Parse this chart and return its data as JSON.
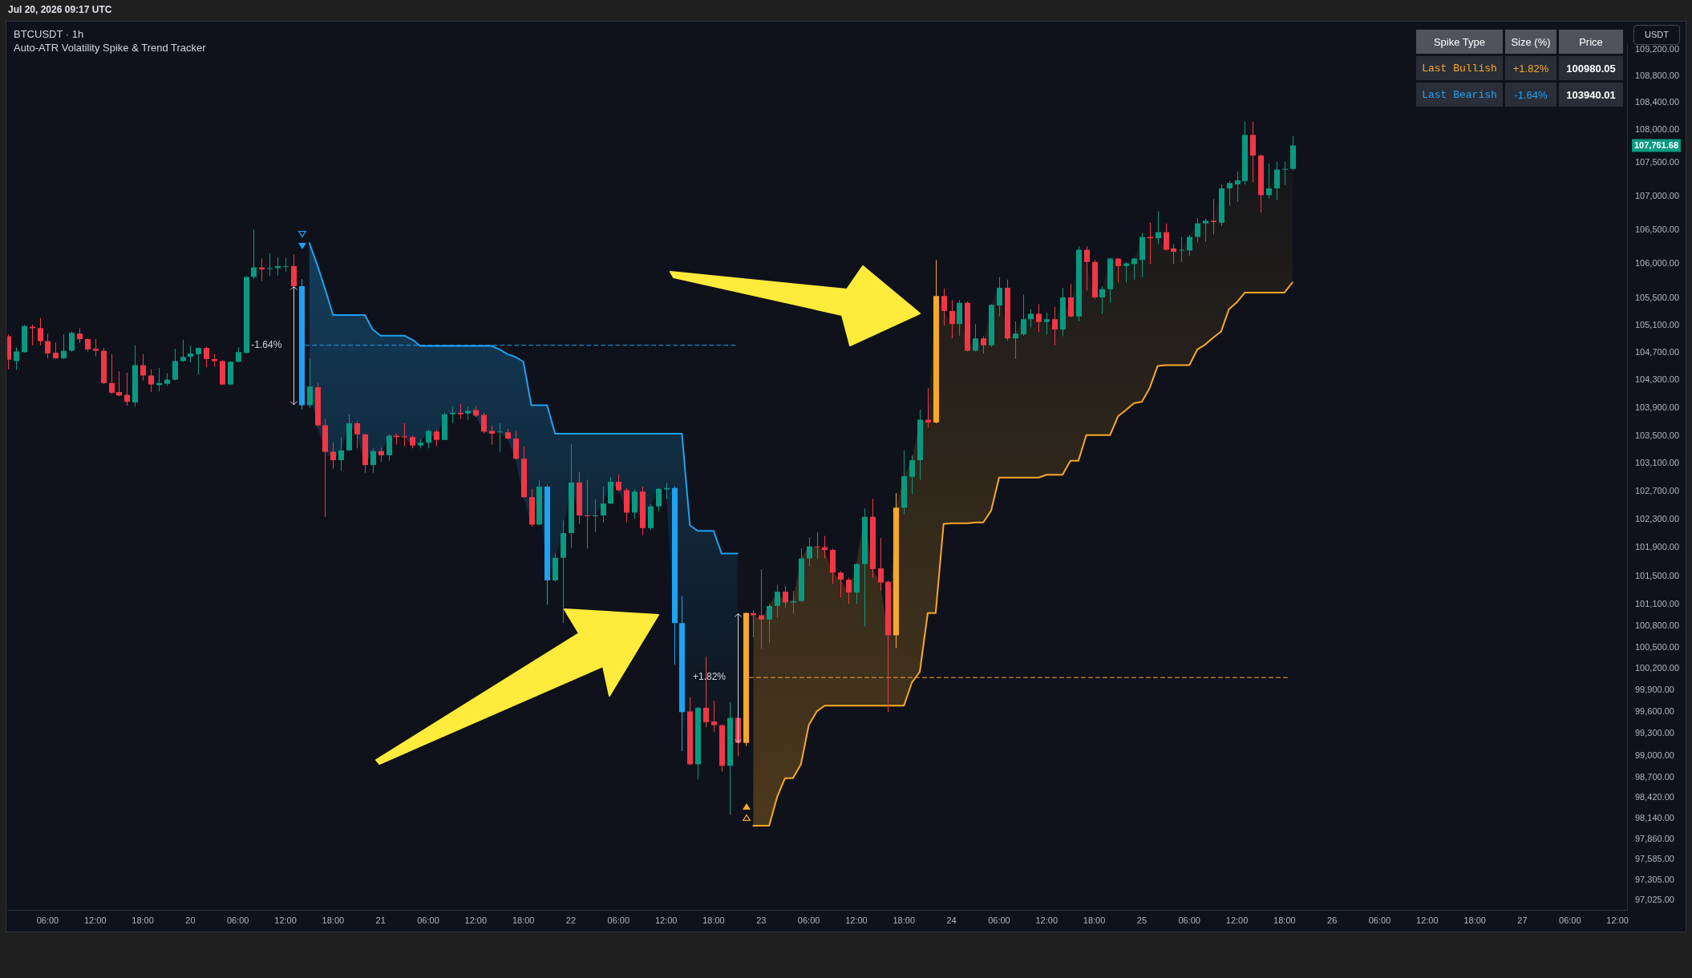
{
  "chart_data": [
    {
      "type": "candlestick",
      "title": "BTCUSDT · 1h",
      "subtitle": "Auto-ATR Volatility Spike & Trend Tracker",
      "ylabel": "USDT",
      "log": true,
      "xlim": [
        "--06-19T00:54",
        "--06-27T13:12"
      ],
      "xticks": [
        {
          "value": "--06-19T06:00",
          "label": "06:00"
        },
        {
          "value": "--06-19T12:00",
          "label": "12:00"
        },
        {
          "value": "--06-19T18:00",
          "label": "18:00"
        },
        {
          "value": "--06-20T00:00",
          "label": "20"
        },
        {
          "value": "--06-20T06:00",
          "label": "06:00"
        },
        {
          "value": "--06-20T12:00",
          "label": "12:00"
        },
        {
          "value": "--06-20T18:00",
          "label": "18:00"
        },
        {
          "value": "--06-21T00:00",
          "label": "21"
        },
        {
          "value": "--06-21T06:00",
          "label": "06:00"
        },
        {
          "value": "--06-21T12:00",
          "label": "12:00"
        },
        {
          "value": "--06-21T18:00",
          "label": "18:00"
        },
        {
          "value": "--06-22T00:00",
          "label": "22"
        },
        {
          "value": "--06-22T06:00",
          "label": "06:00"
        },
        {
          "value": "--06-22T12:00",
          "label": "12:00"
        },
        {
          "value": "--06-22T18:00",
          "label": "18:00"
        },
        {
          "value": "--06-23T00:00",
          "label": "23"
        },
        {
          "value": "--06-23T06:00",
          "label": "06:00"
        },
        {
          "value": "--06-23T12:00",
          "label": "12:00"
        },
        {
          "value": "--06-23T18:00",
          "label": "18:00"
        },
        {
          "value": "--06-24T00:00",
          "label": "24"
        },
        {
          "value": "--06-24T06:00",
          "label": "06:00"
        },
        {
          "value": "--06-24T12:00",
          "label": "12:00"
        },
        {
          "value": "--06-24T18:00",
          "label": "18:00"
        },
        {
          "value": "--06-25T00:00",
          "label": "25"
        },
        {
          "value": "--06-25T06:00",
          "label": "06:00"
        },
        {
          "value": "--06-25T12:00",
          "label": "12:00"
        },
        {
          "value": "--06-25T18:00",
          "label": "18:00"
        },
        {
          "value": "--06-26T00:00",
          "label": "26"
        },
        {
          "value": "--06-26T06:00",
          "label": "06:00"
        },
        {
          "value": "--06-26T12:00",
          "label": "12:00"
        },
        {
          "value": "--06-26T18:00",
          "label": "18:00"
        },
        {
          "value": "--06-27T00:00",
          "label": "27"
        },
        {
          "value": "--06-27T06:00",
          "label": "06:00"
        },
        {
          "value": "--06-27T12:00",
          "label": "12:00"
        }
      ],
      "ylim": [
        96900,
        109290
      ],
      "yticks": [
        {
          "value": 109200,
          "label": "109,200.00"
        },
        {
          "value": 108800,
          "label": "108,800.00"
        },
        {
          "value": 108400,
          "label": "108,400.00"
        },
        {
          "value": 108000,
          "label": "108,000.00"
        },
        {
          "value": 107500,
          "label": "107,500.00"
        },
        {
          "value": 107000,
          "label": "107,000.00"
        },
        {
          "value": 106500,
          "label": "106,500.00"
        },
        {
          "value": 106000,
          "label": "106,000.00"
        },
        {
          "value": 105500,
          "label": "105,500.00"
        },
        {
          "value": 105100,
          "label": "105,100.00"
        },
        {
          "value": 104700,
          "label": "104,700.00"
        },
        {
          "value": 104300,
          "label": "104,300.00"
        },
        {
          "value": 103900,
          "label": "103,900.00"
        },
        {
          "value": 103500,
          "label": "103,500.00"
        },
        {
          "value": 103100,
          "label": "103,100.00"
        },
        {
          "value": 102700,
          "label": "102,700.00"
        },
        {
          "value": 102300,
          "label": "102,300.00"
        },
        {
          "value": 101900,
          "label": "101,900.00"
        },
        {
          "value": 101500,
          "label": "101,500.00"
        },
        {
          "value": 101100,
          "label": "101,100.00"
        },
        {
          "value": 100800,
          "label": "100,800.00"
        },
        {
          "value": 100500,
          "label": "100,500.00"
        },
        {
          "value": 100200,
          "label": "100,200.00"
        },
        {
          "value": 99900,
          "label": "99,900.00"
        },
        {
          "value": 99600,
          "label": "99,600.00"
        },
        {
          "value": 99300,
          "label": "99,300.00"
        },
        {
          "value": 99000,
          "label": "99,000.00"
        },
        {
          "value": 98700,
          "label": "98,700.00"
        },
        {
          "value": 98420,
          "label": "98,420.00"
        },
        {
          "value": 98140,
          "label": "98,140.00"
        },
        {
          "value": 97860,
          "label": "97,860.00"
        },
        {
          "value": 97585,
          "label": "97,585.00"
        },
        {
          "value": 97305,
          "label": "97,305.00"
        },
        {
          "value": 97025,
          "label": "97,025.00"
        }
      ],
      "x": [
        "--06-19T01:00",
        "--06-19T02:00",
        "--06-19T03:00",
        "--06-19T04:00",
        "--06-19T05:00",
        "--06-19T06:00",
        "--06-19T07:00",
        "--06-19T08:00",
        "--06-19T09:00",
        "--06-19T10:00",
        "--06-19T11:00",
        "--06-19T12:00",
        "--06-19T13:00",
        "--06-19T14:00",
        "--06-19T15:00",
        "--06-19T16:00",
        "--06-19T17:00",
        "--06-19T18:00",
        "--06-19T19:00",
        "--06-19T20:00",
        "--06-19T21:00",
        "--06-19T22:00",
        "--06-19T23:00",
        "--06-20T00:00",
        "--06-20T01:00",
        "--06-20T02:00",
        "--06-20T03:00",
        "--06-20T04:00",
        "--06-20T05:00",
        "--06-20T06:00",
        "--06-20T07:00",
        "--06-20T08:00",
        "--06-20T09:00",
        "--06-20T10:00",
        "--06-20T11:00",
        "--06-20T12:00",
        "--06-20T13:00",
        "--06-20T14:00",
        "--06-20T15:00",
        "--06-20T16:00",
        "--06-20T17:00",
        "--06-20T18:00",
        "--06-20T19:00",
        "--06-20T20:00",
        "--06-20T21:00",
        "--06-20T22:00",
        "--06-20T23:00",
        "--06-21T00:00",
        "--06-21T01:00",
        "--06-21T02:00",
        "--06-21T03:00",
        "--06-21T04:00",
        "--06-21T05:00",
        "--06-21T06:00",
        "--06-21T07:00",
        "--06-21T08:00",
        "--06-21T09:00",
        "--06-21T10:00",
        "--06-21T11:00",
        "--06-21T12:00",
        "--06-21T13:00",
        "--06-21T14:00",
        "--06-21T15:00",
        "--06-21T16:00",
        "--06-21T17:00",
        "--06-21T18:00",
        "--06-21T19:00",
        "--06-21T20:00",
        "--06-21T21:00",
        "--06-21T22:00",
        "--06-21T23:00",
        "--06-22T00:00",
        "--06-22T01:00",
        "--06-22T02:00",
        "--06-22T03:00",
        "--06-22T04:00",
        "--06-22T05:00",
        "--06-22T06:00",
        "--06-22T07:00",
        "--06-22T08:00",
        "--06-22T09:00",
        "--06-22T10:00",
        "--06-22T11:00",
        "--06-22T12:00",
        "--06-22T13:00",
        "--06-22T14:00",
        "--06-22T15:00",
        "--06-22T16:00",
        "--06-22T17:00",
        "--06-22T18:00",
        "--06-22T19:00",
        "--06-22T20:00",
        "--06-22T21:00",
        "--06-22T22:00",
        "--06-22T23:00",
        "--06-23T00:00",
        "--06-23T01:00",
        "--06-23T02:00",
        "--06-23T03:00",
        "--06-23T04:00",
        "--06-23T05:00",
        "--06-23T06:00",
        "--06-23T07:00",
        "--06-23T08:00",
        "--06-23T09:00",
        "--06-23T10:00",
        "--06-23T11:00",
        "--06-23T12:00",
        "--06-23T13:00",
        "--06-23T14:00",
        "--06-23T15:00",
        "--06-23T16:00",
        "--06-23T17:00",
        "--06-23T18:00",
        "--06-23T19:00",
        "--06-23T20:00",
        "--06-23T21:00",
        "--06-23T22:00",
        "--06-23T23:00",
        "--06-24T00:00",
        "--06-24T01:00",
        "--06-24T02:00",
        "--06-24T03:00",
        "--06-24T04:00",
        "--06-24T05:00",
        "--06-24T06:00",
        "--06-24T07:00",
        "--06-24T08:00",
        "--06-24T09:00",
        "--06-24T10:00",
        "--06-24T11:00",
        "--06-24T12:00",
        "--06-24T13:00",
        "--06-24T14:00",
        "--06-24T15:00",
        "--06-24T16:00",
        "--06-24T17:00",
        "--06-24T18:00",
        "--06-24T19:00",
        "--06-24T20:00",
        "--06-24T21:00",
        "--06-24T22:00",
        "--06-24T23:00",
        "--06-25T00:00",
        "--06-25T01:00",
        "--06-25T02:00",
        "--06-25T03:00",
        "--06-25T04:00",
        "--06-25T05:00",
        "--06-25T06:00",
        "--06-25T07:00",
        "--06-25T08:00",
        "--06-25T09:00",
        "--06-25T10:00",
        "--06-25T11:00",
        "--06-25T12:00",
        "--06-25T13:00",
        "--06-25T14:00",
        "--06-25T15:00",
        "--06-25T16:00",
        "--06-25T17:00",
        "--06-25T18:00",
        "--06-25T19:00"
      ],
      "ohlc": [
        [
          104940,
          104970,
          104460,
          104600
        ],
        [
          104580,
          104780,
          104450,
          104720
        ],
        [
          104710,
          105110,
          104700,
          105090
        ],
        [
          105080,
          105110,
          104810,
          105060
        ],
        [
          105060,
          105210,
          104810,
          104870
        ],
        [
          104870,
          104980,
          104620,
          104690
        ],
        [
          104700,
          104850,
          104610,
          104620
        ],
        [
          104620,
          104970,
          104610,
          104730
        ],
        [
          104730,
          105010,
          104720,
          104990
        ],
        [
          104980,
          105060,
          104840,
          104900
        ],
        [
          104900,
          104910,
          104720,
          104750
        ],
        [
          104760,
          104900,
          104650,
          104730
        ],
        [
          104730,
          104770,
          104250,
          104260
        ],
        [
          104260,
          104680,
          104100,
          104120
        ],
        [
          104130,
          104430,
          104070,
          104080
        ],
        [
          104090,
          104410,
          103930,
          103990
        ],
        [
          103980,
          104810,
          103920,
          104520
        ],
        [
          104520,
          104680,
          104300,
          104370
        ],
        [
          104370,
          104460,
          104130,
          104240
        ],
        [
          104230,
          104480,
          104140,
          104260
        ],
        [
          104250,
          104400,
          104220,
          104310
        ],
        [
          104310,
          104760,
          104300,
          104580
        ],
        [
          104580,
          104890,
          104570,
          104640
        ],
        [
          104640,
          104810,
          104560,
          104690
        ],
        [
          104680,
          104780,
          104380,
          104770
        ],
        [
          104770,
          104790,
          104490,
          104610
        ],
        [
          104610,
          104680,
          104500,
          104580
        ],
        [
          104580,
          104600,
          104230,
          104240
        ],
        [
          104240,
          104580,
          104230,
          104570
        ],
        [
          104570,
          104780,
          104560,
          104710
        ],
        [
          104700,
          105820,
          104690,
          105810
        ],
        [
          105810,
          106510,
          105780,
          105950
        ],
        [
          105950,
          106080,
          105750,
          105920
        ],
        [
          105930,
          106160,
          105820,
          105940
        ],
        [
          105940,
          106100,
          105830,
          105970
        ],
        [
          105960,
          106090,
          105890,
          105970
        ],
        [
          105970,
          106140,
          105650,
          105673
        ],
        [
          105673,
          105780,
          103880,
          103940.01
        ],
        [
          103940,
          104610,
          103900,
          104210
        ],
        [
          104200,
          104260,
          103630,
          103650
        ],
        [
          103650,
          103740,
          102340,
          103270
        ],
        [
          103270,
          103400,
          103030,
          103150
        ],
        [
          103150,
          103480,
          103000,
          103290
        ],
        [
          103290,
          103810,
          103280,
          103680
        ],
        [
          103680,
          103710,
          103320,
          103520
        ],
        [
          103520,
          103530,
          102970,
          103080
        ],
        [
          103080,
          103320,
          102970,
          103280
        ],
        [
          103280,
          103330,
          103120,
          103220
        ],
        [
          103220,
          103520,
          103140,
          103500
        ],
        [
          103500,
          103530,
          103370,
          103480
        ],
        [
          103490,
          103680,
          103350,
          103480
        ],
        [
          103480,
          103500,
          103320,
          103360
        ],
        [
          103360,
          103450,
          103320,
          103400
        ],
        [
          103400,
          103590,
          103320,
          103570
        ],
        [
          103560,
          103590,
          103350,
          103440
        ],
        [
          103440,
          103830,
          103440,
          103810
        ],
        [
          103810,
          103920,
          103680,
          103830
        ],
        [
          103830,
          103960,
          103740,
          103810
        ],
        [
          103820,
          103920,
          103730,
          103860
        ],
        [
          103870,
          103930,
          103770,
          103790
        ],
        [
          103800,
          103830,
          103530,
          103560
        ],
        [
          103570,
          103640,
          103370,
          103530
        ],
        [
          103550,
          103680,
          103270,
          103560
        ],
        [
          103550,
          103600,
          103450,
          103460
        ],
        [
          103460,
          103570,
          103160,
          103170
        ],
        [
          103170,
          103350,
          102610,
          102620
        ],
        [
          102620,
          102740,
          102200,
          102230
        ],
        [
          102230,
          102870,
          102220,
          102770
        ],
        [
          102770,
          102790,
          101100,
          101440
        ],
        [
          101440,
          101820,
          101420,
          101760
        ],
        [
          101760,
          102290,
          100840,
          102110
        ],
        [
          102110,
          103380,
          101900,
          102830
        ],
        [
          102830,
          102980,
          102240,
          102360
        ],
        [
          102360,
          102870,
          101890,
          102350
        ],
        [
          102350,
          102590,
          102120,
          102360
        ],
        [
          102360,
          102770,
          102260,
          102530
        ],
        [
          102530,
          102910,
          102520,
          102840
        ],
        [
          102840,
          102940,
          102700,
          102720
        ],
        [
          102720,
          102750,
          102260,
          102400
        ],
        [
          102400,
          102730,
          102310,
          102700
        ],
        [
          102700,
          102770,
          102080,
          102180
        ],
        [
          102180,
          102520,
          102150,
          102490
        ],
        [
          102490,
          102750,
          102420,
          102740
        ],
        [
          102730,
          102820,
          102590,
          102750
        ],
        [
          102750,
          102780,
          100260,
          100840
        ],
        [
          100840,
          101220,
          99060,
          99600
        ],
        [
          99610,
          99810,
          98870,
          98880
        ],
        [
          98880,
          99670,
          98670,
          99660
        ],
        [
          99660,
          100370,
          99390,
          99460
        ],
        [
          99470,
          99760,
          99330,
          99420
        ],
        [
          99420,
          99430,
          98780,
          98860
        ],
        [
          98860,
          99740,
          98190,
          99520
        ],
        [
          99520,
          99540,
          98990,
          99175
        ],
        [
          99175,
          100990,
          99130,
          100980.05
        ],
        [
          100980,
          101020,
          100640,
          100950
        ],
        [
          100950,
          101600,
          100480,
          100890
        ],
        [
          100890,
          101110,
          100560,
          101080
        ],
        [
          101080,
          101380,
          100920,
          101280
        ],
        [
          101280,
          101360,
          101060,
          101130
        ],
        [
          101130,
          101290,
          100970,
          101150
        ],
        [
          101150,
          101890,
          101130,
          101750
        ],
        [
          101750,
          102050,
          101640,
          101920
        ],
        [
          101920,
          102120,
          101740,
          101910
        ],
        [
          101910,
          102070,
          101750,
          101870
        ],
        [
          101870,
          101890,
          101390,
          101550
        ],
        [
          101550,
          101570,
          101200,
          101450
        ],
        [
          101450,
          101480,
          101110,
          101270
        ],
        [
          101270,
          101680,
          101110,
          101670
        ],
        [
          101670,
          102460,
          100790,
          102340
        ],
        [
          102340,
          102600,
          101480,
          101600
        ],
        [
          101610,
          102040,
          101290,
          101410
        ],
        [
          101420,
          101440,
          99600,
          100670
        ],
        [
          100670,
          102680,
          100490,
          102470
        ],
        [
          102470,
          103290,
          102380,
          102920
        ],
        [
          102910,
          103220,
          102660,
          103150
        ],
        [
          103150,
          103880,
          102870,
          103730
        ],
        [
          103730,
          104190,
          103620,
          103690
        ],
        [
          103690,
          106060,
          103680,
          105530
        ],
        [
          105530,
          105640,
          105100,
          105310
        ],
        [
          105310,
          105470,
          104910,
          105120
        ],
        [
          105120,
          105470,
          104950,
          105430
        ],
        [
          105430,
          105450,
          104720,
          104730
        ],
        [
          104730,
          105120,
          104720,
          104910
        ],
        [
          104910,
          104940,
          104690,
          104810
        ],
        [
          104810,
          105410,
          104790,
          105400
        ],
        [
          105390,
          105810,
          105230,
          105650
        ],
        [
          105650,
          105770,
          104880,
          104910
        ],
        [
          104910,
          105160,
          104610,
          104980
        ],
        [
          104970,
          105550,
          104950,
          105190
        ],
        [
          105190,
          105340,
          105070,
          105270
        ],
        [
          105270,
          105410,
          105000,
          105150
        ],
        [
          105150,
          105290,
          104970,
          105190
        ],
        [
          105190,
          105370,
          104810,
          105040
        ],
        [
          105040,
          105650,
          104940,
          105510
        ],
        [
          105510,
          105710,
          105220,
          105230
        ],
        [
          105230,
          106260,
          105160,
          106210
        ],
        [
          106210,
          106260,
          105610,
          106030
        ],
        [
          106030,
          106060,
          105490,
          105510
        ],
        [
          105510,
          105670,
          105270,
          105630
        ],
        [
          105630,
          106090,
          105430,
          106080
        ],
        [
          106080,
          106090,
          105730,
          105970
        ],
        [
          105970,
          106030,
          105730,
          106010
        ],
        [
          106000,
          106090,
          105770,
          106080
        ],
        [
          106060,
          106460,
          105810,
          106400
        ],
        [
          106400,
          106610,
          106000,
          106380
        ],
        [
          106380,
          106780,
          106290,
          106470
        ],
        [
          106470,
          106600,
          106200,
          106210
        ],
        [
          106230,
          106290,
          106000,
          106180
        ],
        [
          106200,
          106400,
          106030,
          106210
        ],
        [
          106200,
          106430,
          106120,
          106400
        ],
        [
          106400,
          106680,
          106320,
          106600
        ],
        [
          106600,
          106670,
          106330,
          106640
        ],
        [
          106640,
          106960,
          106440,
          106620
        ],
        [
          106610,
          107180,
          106560,
          107120
        ],
        [
          107120,
          107230,
          106860,
          107200
        ],
        [
          107180,
          107370,
          106920,
          107240
        ],
        [
          107230,
          108120,
          107180,
          107920
        ],
        [
          107920,
          108120,
          107210,
          107610
        ],
        [
          107610,
          107630,
          106760,
          107020
        ],
        [
          107020,
          107490,
          106970,
          107120
        ],
        [
          107120,
          107520,
          106940,
          107400
        ],
        [
          107400,
          107520,
          107170,
          107410
        ],
        [
          107410,
          107900,
          107390,
          107761.68
        ]
      ],
      "colors": [
        "#f23645",
        "#089981",
        "#089981",
        "#f23645",
        "#f23645",
        "#f23645",
        "#f23645",
        "#089981",
        "#089981",
        "#f23645",
        "#f23645",
        "#f23645",
        "#f23645",
        "#f23645",
        "#f23645",
        "#f23645",
        "#089981",
        "#f23645",
        "#f23645",
        "#089981",
        "#089981",
        "#089981",
        "#089981",
        "#089981",
        "#089981",
        "#f23645",
        "#f23645",
        "#f23645",
        "#089981",
        "#089981",
        "#089981",
        "#089981",
        "#f23645",
        "#089981",
        "#089981",
        "#089981",
        "#f23645",
        "#1ea2f3",
        "#089981",
        "#f23645",
        "#f23645",
        "#f23645",
        "#089981",
        "#089981",
        "#f23645",
        "#f23645",
        "#089981",
        "#f23645",
        "#089981",
        "#f23645",
        "#f23645",
        "#f23645",
        "#089981",
        "#089981",
        "#f23645",
        "#089981",
        "#089981",
        "#f23645",
        "#089981",
        "#f23645",
        "#f23645",
        "#f23645",
        "#089981",
        "#f23645",
        "#f23645",
        "#f23645",
        "#f23645",
        "#089981",
        "#1ea2f3",
        "#089981",
        "#089981",
        "#089981",
        "#f23645",
        "#f23645",
        "#089981",
        "#089981",
        "#089981",
        "#f23645",
        "#f23645",
        "#089981",
        "#f23645",
        "#089981",
        "#089981",
        "#089981",
        "#1ea2f3",
        "#1ea2f3",
        "#f23645",
        "#089981",
        "#f23645",
        "#f23645",
        "#f23645",
        "#089981",
        "#f23645",
        "#f9a825",
        "#f23645",
        "#f23645",
        "#089981",
        "#089981",
        "#f23645",
        "#089981",
        "#089981",
        "#089981",
        "#f23645",
        "#f23645",
        "#f23645",
        "#f23645",
        "#f23645",
        "#089981",
        "#089981",
        "#f23645",
        "#f23645",
        "#f23645",
        "#f9a825",
        "#089981",
        "#089981",
        "#089981",
        "#f23645",
        "#f9a825",
        "#f23645",
        "#f23645",
        "#089981",
        "#f23645",
        "#089981",
        "#f23645",
        "#089981",
        "#089981",
        "#f23645",
        "#089981",
        "#089981",
        "#089981",
        "#f23645",
        "#089981",
        "#f23645",
        "#089981",
        "#f23645",
        "#089981",
        "#f23645",
        "#f23645",
        "#089981",
        "#089981",
        "#f23645",
        "#089981",
        "#089981",
        "#089981",
        "#f23645",
        "#089981",
        "#f23645",
        "#f23645",
        "#089981",
        "#089981",
        "#089981",
        "#089981",
        "#f23645",
        "#089981",
        "#089981",
        "#089981",
        "#089981",
        "#f23645",
        "#f23645",
        "#089981",
        "#089981",
        "#089981",
        "#089981"
      ],
      "series": [
        {
          "type": "line",
          "color": "#1ea2f3",
          "x": [
            "--06-20T15:00",
            "--06-20T16:00",
            "--06-20T17:00",
            "--06-20T18:00",
            "--06-20T19:00",
            "--06-20T20:00",
            "--06-20T21:00",
            "--06-20T22:00",
            "--06-20T23:00",
            "--06-21T00:00",
            "--06-21T01:00",
            "--06-21T02:00",
            "--06-21T03:00",
            "--06-21T04:00",
            "--06-21T05:00",
            "--06-21T06:00",
            "--06-21T07:00",
            "--06-21T08:00",
            "--06-21T09:00",
            "--06-21T10:00",
            "--06-21T11:00",
            "--06-21T12:00",
            "--06-21T13:00",
            "--06-21T14:00",
            "--06-21T15:00",
            "--06-21T16:00",
            "--06-21T17:00",
            "--06-21T18:00",
            "--06-21T19:00",
            "--06-21T20:00",
            "--06-21T21:00",
            "--06-21T22:00",
            "--06-21T23:00",
            "--06-22T00:00",
            "--06-22T01:00",
            "--06-22T02:00",
            "--06-22T03:00",
            "--06-22T04:00",
            "--06-22T05:00",
            "--06-22T06:00",
            "--06-22T07:00",
            "--06-22T08:00",
            "--06-22T09:00",
            "--06-22T10:00",
            "--06-22T11:00",
            "--06-22T12:00",
            "--06-22T13:00",
            "--06-22T14:00",
            "--06-22T15:00",
            "--06-22T16:00",
            "--06-22T17:00",
            "--06-22T18:00",
            "--06-22T19:00",
            "--06-22T20:00",
            "--06-22T21:00"
          ],
          "values": [
            106310,
            105990,
            105630,
            105250,
            105250,
            105250,
            105250,
            105250,
            105040,
            104950,
            104950,
            104950,
            104950,
            104890,
            104800,
            104800,
            104800,
            104800,
            104800,
            104800,
            104800,
            104800,
            104800,
            104800,
            104750,
            104680,
            104640,
            104570,
            103940,
            103940,
            103940,
            103530,
            103530,
            103530,
            103530,
            103530,
            103530,
            103530,
            103530,
            103530,
            103530,
            103530,
            103530,
            103530,
            103530,
            103530,
            103530,
            103530,
            102220,
            102140,
            102140,
            102140,
            101820,
            101820,
            101820
          ]
        },
        {
          "type": "line",
          "color": "#f9a825",
          "x": [
            "--06-22T23:00",
            "--06-23T00:00",
            "--06-23T01:00",
            "--06-23T02:00",
            "--06-23T03:00",
            "--06-23T04:00",
            "--06-23T05:00",
            "--06-23T06:00",
            "--06-23T07:00",
            "--06-23T08:00",
            "--06-23T09:00",
            "--06-23T10:00",
            "--06-23T11:00",
            "--06-23T12:00",
            "--06-23T13:00",
            "--06-23T14:00",
            "--06-23T15:00",
            "--06-23T16:00",
            "--06-23T17:00",
            "--06-23T18:00",
            "--06-23T19:00",
            "--06-23T20:00",
            "--06-23T21:00",
            "--06-23T22:00",
            "--06-23T23:00",
            "--06-24T00:00",
            "--06-24T01:00",
            "--06-24T02:00",
            "--06-24T03:00",
            "--06-24T04:00",
            "--06-24T05:00",
            "--06-24T06:00",
            "--06-24T07:00",
            "--06-24T08:00",
            "--06-24T09:00",
            "--06-24T10:00",
            "--06-24T11:00",
            "--06-24T12:00",
            "--06-24T13:00",
            "--06-24T14:00",
            "--06-24T15:00",
            "--06-24T16:00",
            "--06-24T17:00",
            "--06-24T18:00",
            "--06-24T19:00",
            "--06-24T20:00",
            "--06-24T21:00",
            "--06-24T22:00",
            "--06-24T23:00",
            "--06-25T00:00",
            "--06-25T01:00",
            "--06-25T02:00",
            "--06-25T03:00",
            "--06-25T04:00",
            "--06-25T05:00",
            "--06-25T06:00",
            "--06-25T07:00",
            "--06-25T08:00",
            "--06-25T09:00",
            "--06-25T10:00",
            "--06-25T11:00",
            "--06-25T12:00",
            "--06-25T13:00",
            "--06-25T14:00",
            "--06-25T15:00",
            "--06-25T16:00",
            "--06-25T17:00",
            "--06-25T18:00",
            "--06-25T19:00"
          ],
          "values": [
            98040,
            98040,
            98040,
            98430,
            98690,
            98690,
            98880,
            99420,
            99610,
            99690,
            99690,
            99690,
            99690,
            99690,
            99690,
            99690,
            99690,
            99690,
            99690,
            99690,
            100010,
            100160,
            100980,
            100980,
            102240,
            102250,
            102250,
            102250,
            102260,
            102260,
            102430,
            102900,
            102900,
            102900,
            102900,
            102900,
            102900,
            102940,
            102940,
            102940,
            103140,
            103140,
            103510,
            103510,
            103510,
            103510,
            103780,
            103870,
            103970,
            103990,
            104190,
            104510,
            104520,
            104520,
            104520,
            104520,
            104750,
            104820,
            104920,
            105010,
            105340,
            105440,
            105580,
            105580,
            105580,
            105580,
            105580,
            105580,
            105730
          ]
        },
        {
          "type": "line",
          "color": "#1ea2f3",
          "line_style": "dashed",
          "x": [
            "--06-20T14:30",
            "--06-22T21:00"
          ],
          "values": [
            104810,
            104810
          ]
        },
        {
          "type": "line",
          "color": "#f9a825",
          "line_style": "dashed",
          "x": [
            "--06-22T22:30",
            "--06-25T18:24"
          ],
          "values": [
            100080,
            100080
          ]
        }
      ],
      "annotations": [
        "Jul 20, 2026 09:17 UTC",
        {
          "text": "-1.64%",
          "x": "--06-20T14:00",
          "y": 104810
        },
        {
          "text": "+1.82%",
          "x": "--06-22T22:00",
          "y": 100080
        },
        "107,761.68"
      ]
    },
    {
      "type": "other",
      "annotations": [
        "Spike Type",
        "Size (%)",
        "Price",
        "Last Bullish",
        "+1.82%",
        "100980.05",
        "Last Bearish",
        "-1.64%",
        "103940.01"
      ],
      "colors": [
        "#ffffff",
        "#ffffff",
        "#ffffff",
        "#f9a825",
        "#f9a825",
        "#ffffff",
        "#1ea2f3",
        "#1ea2f3",
        "#ffffff"
      ]
    }
  ]
}
